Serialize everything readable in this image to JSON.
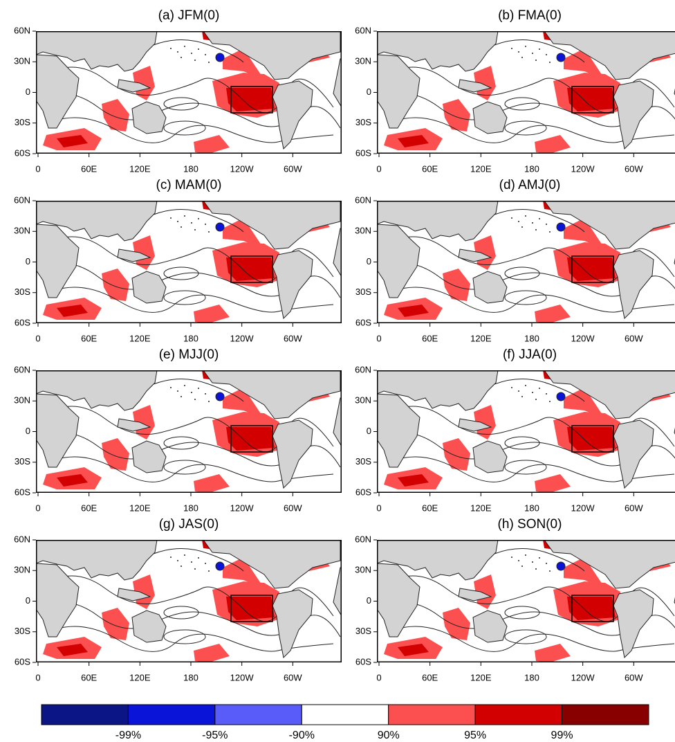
{
  "panels": [
    {
      "title": "(a)  JFM(0)"
    },
    {
      "title": "(b)  FMA(0)"
    },
    {
      "title": "(c)  MAM(0)"
    },
    {
      "title": "(d)  AMJ(0)"
    },
    {
      "title": "(e)  MJJ(0)"
    },
    {
      "title": "(f)  JJA(0)"
    },
    {
      "title": "(g)  JAS(0)"
    },
    {
      "title": "(h)  SON(0)"
    }
  ],
  "lat_labels": [
    "60N",
    "30N",
    "0",
    "30S",
    "60S"
  ],
  "lon_labels": [
    "0",
    "60E",
    "120E",
    "180",
    "120W",
    "60W"
  ],
  "colorbar": {
    "colors": [
      "#0b1585",
      "#0a14d8",
      "#5a5cfa",
      "#ffffff",
      "#fc5050",
      "#d20000",
      "#880000"
    ],
    "labels": [
      "-99%",
      "-95%",
      "-90%",
      "90%",
      "95%",
      "99%"
    ]
  }
}
